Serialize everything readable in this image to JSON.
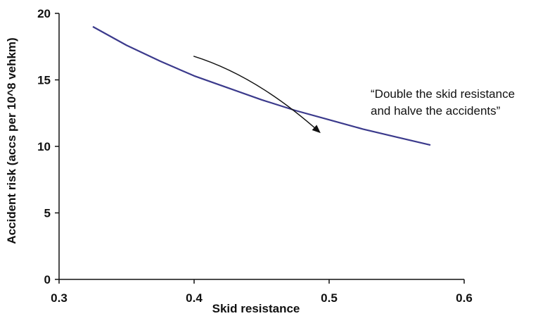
{
  "chart_data": {
    "type": "line",
    "title": "",
    "xlabel": "Skid resistance",
    "ylabel": "Accident risk (accs per 10^8 vehkm)",
    "xlim": [
      0.3,
      0.6
    ],
    "ylim": [
      0,
      20
    ],
    "x_ticks": [
      "0.3",
      "0.4",
      "0.5",
      "0.6"
    ],
    "y_ticks": [
      "0",
      "5",
      "10",
      "15",
      "20"
    ],
    "grid": false,
    "legend": "none",
    "series": [
      {
        "color": "#3b3a8c",
        "x": [
          0.325,
          0.35,
          0.375,
          0.4,
          0.425,
          0.45,
          0.475,
          0.5,
          0.525,
          0.55,
          0.575
        ],
        "y": [
          19.0,
          17.6,
          16.4,
          15.3,
          14.4,
          13.5,
          12.7,
          12.0,
          11.3,
          10.7,
          10.1
        ]
      }
    ],
    "annotation": {
      "lines": [
        "“Double the skid resistance",
        "and halve the accidents”"
      ],
      "arrow_from": [
        0.41,
        15.3
      ],
      "arrow_to": [
        0.495,
        11.6
      ]
    }
  }
}
